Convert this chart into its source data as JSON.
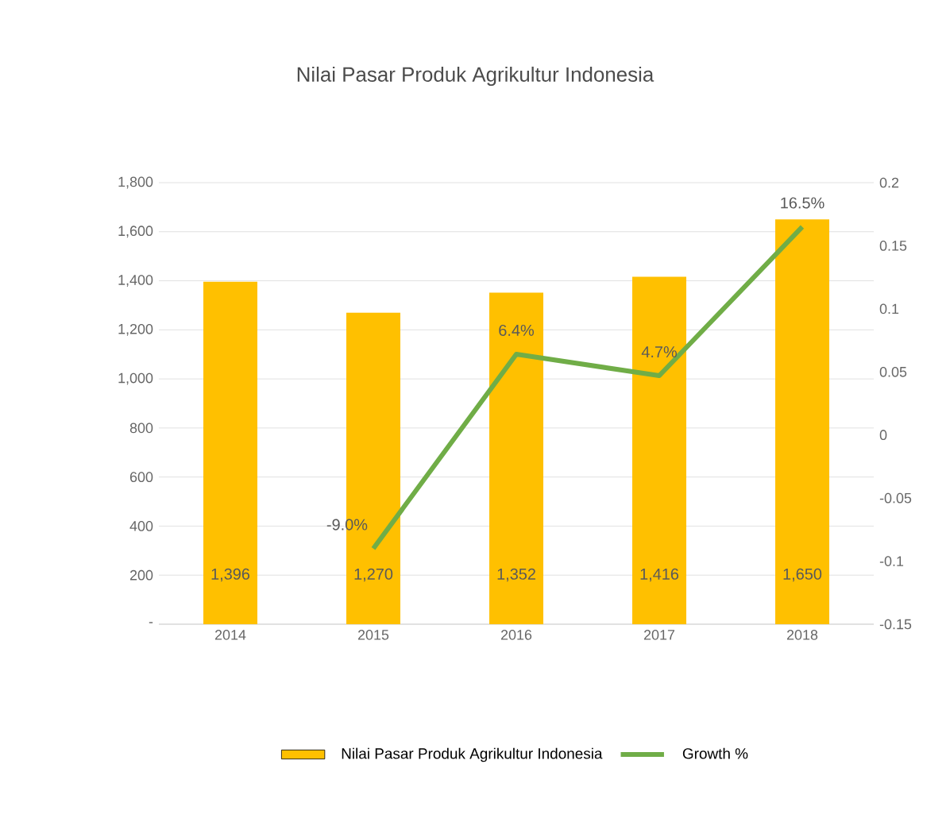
{
  "chart_data": {
    "type": "bar",
    "title": "Nilai Pasar Produk Agrikultur Indonesia",
    "categories": [
      "2014",
      "2015",
      "2016",
      "2017",
      "2018"
    ],
    "series": [
      {
        "name": "Nilai Pasar Produk Agrikultur Indonesia",
        "color": "#ffc000",
        "values": [
          1396,
          1270,
          1352,
          1416,
          1650
        ],
        "value_labels": [
          "1,396",
          "1,270",
          "1,352",
          "1,416",
          "1,650"
        ]
      },
      {
        "name": "Growth %",
        "type": "line",
        "axis": "y2",
        "color": "#70ad47",
        "values": [
          null,
          -0.09,
          0.064,
          0.047,
          0.165
        ],
        "value_labels": [
          null,
          "-9.0%",
          "6.4%",
          "4.7%",
          "16.5%"
        ]
      }
    ],
    "ylim": [
      0,
      1800
    ],
    "yticks": [
      {
        "value": 0,
        "label": "-"
      },
      {
        "value": 200,
        "label": "200"
      },
      {
        "value": 400,
        "label": "400"
      },
      {
        "value": 600,
        "label": "600"
      },
      {
        "value": 800,
        "label": "800"
      },
      {
        "value": 1000,
        "label": "1,000"
      },
      {
        "value": 1200,
        "label": "1,200"
      },
      {
        "value": 1400,
        "label": "1,400"
      },
      {
        "value": 1600,
        "label": "1,600"
      },
      {
        "value": 1800,
        "label": "1,800"
      }
    ],
    "y2lim": [
      -0.15,
      0.2
    ],
    "y2ticks": [
      -0.15,
      -0.1,
      -0.05,
      0,
      0.05,
      0.1,
      0.15,
      0.2
    ],
    "grid": "y",
    "legend": "bottom",
    "marker": "none"
  }
}
